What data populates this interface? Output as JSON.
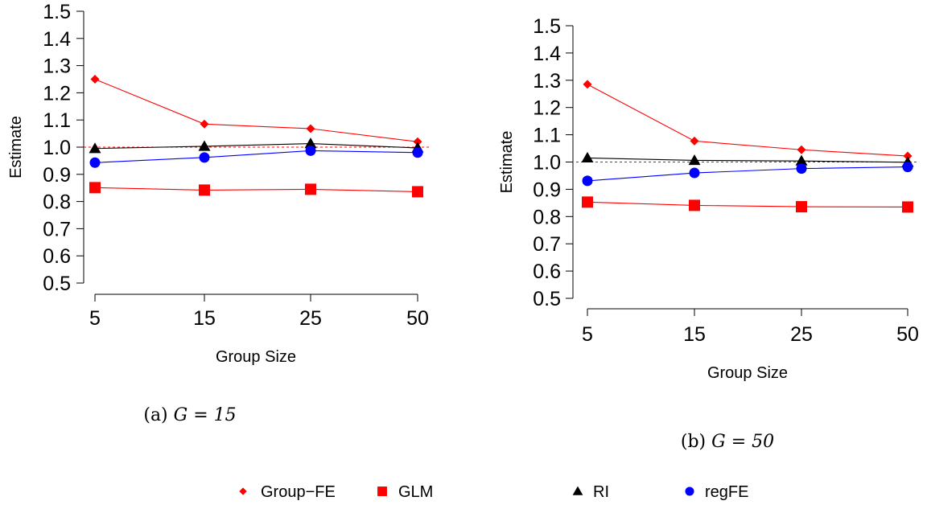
{
  "chart_data": [
    {
      "type": "line",
      "caption_prefix": "(a) ",
      "caption_math": "G = 15",
      "xlabel": "Group Size",
      "ylabel": "Estimate",
      "categories": [
        "5",
        "15",
        "25",
        "50"
      ],
      "yticks": [
        "0.5",
        "0.6",
        "0.7",
        "0.8",
        "0.9",
        "1.0",
        "1.1",
        "1.2",
        "1.3",
        "1.4",
        "1.5"
      ],
      "ylim": [
        0.5,
        1.5
      ],
      "reference_line": 1.0,
      "series": [
        {
          "name": "Group−FE",
          "values": [
            1.25,
            1.085,
            1.068,
            1.02
          ],
          "color": "#ff0000",
          "marker": "diamond"
        },
        {
          "name": "GLM",
          "values": [
            0.851,
            0.842,
            0.845,
            0.836
          ],
          "color": "#ff0000",
          "marker": "square"
        },
        {
          "name": "RI",
          "values": [
            0.995,
            1.003,
            1.013,
            0.997
          ],
          "color": "#000000",
          "marker": "triangle"
        },
        {
          "name": "regFE",
          "values": [
            0.943,
            0.962,
            0.987,
            0.98
          ],
          "color": "#0000ff",
          "marker": "circle"
        }
      ]
    },
    {
      "type": "line",
      "caption_prefix": "(b) ",
      "caption_math": "G = 50",
      "xlabel": "Group Size",
      "ylabel": "Estimate",
      "categories": [
        "5",
        "15",
        "25",
        "50"
      ],
      "yticks": [
        "0.5",
        "0.6",
        "0.7",
        "0.8",
        "0.9",
        "1.0",
        "1.1",
        "1.2",
        "1.3",
        "1.4",
        "1.5"
      ],
      "ylim": [
        0.5,
        1.5
      ],
      "reference_line": 1.0,
      "series": [
        {
          "name": "Group−FE",
          "values": [
            1.285,
            1.077,
            1.045,
            1.022
          ],
          "color": "#ff0000",
          "marker": "diamond"
        },
        {
          "name": "GLM",
          "values": [
            0.853,
            0.841,
            0.836,
            0.835
          ],
          "color": "#ff0000",
          "marker": "square"
        },
        {
          "name": "RI",
          "values": [
            1.015,
            1.006,
            1.004,
            0.999
          ],
          "color": "#000000",
          "marker": "triangle"
        },
        {
          "name": "regFE",
          "values": [
            0.931,
            0.96,
            0.976,
            0.982
          ],
          "color": "#0000ff",
          "marker": "circle"
        }
      ]
    }
  ],
  "legend": [
    {
      "label": "Group−FE",
      "color": "#ff0000",
      "marker": "diamond"
    },
    {
      "label": "GLM",
      "color": "#ff0000",
      "marker": "square"
    },
    {
      "label": "RI",
      "color": "#000000",
      "marker": "triangle"
    },
    {
      "label": "regFE",
      "color": "#0000ff",
      "marker": "circle"
    }
  ]
}
